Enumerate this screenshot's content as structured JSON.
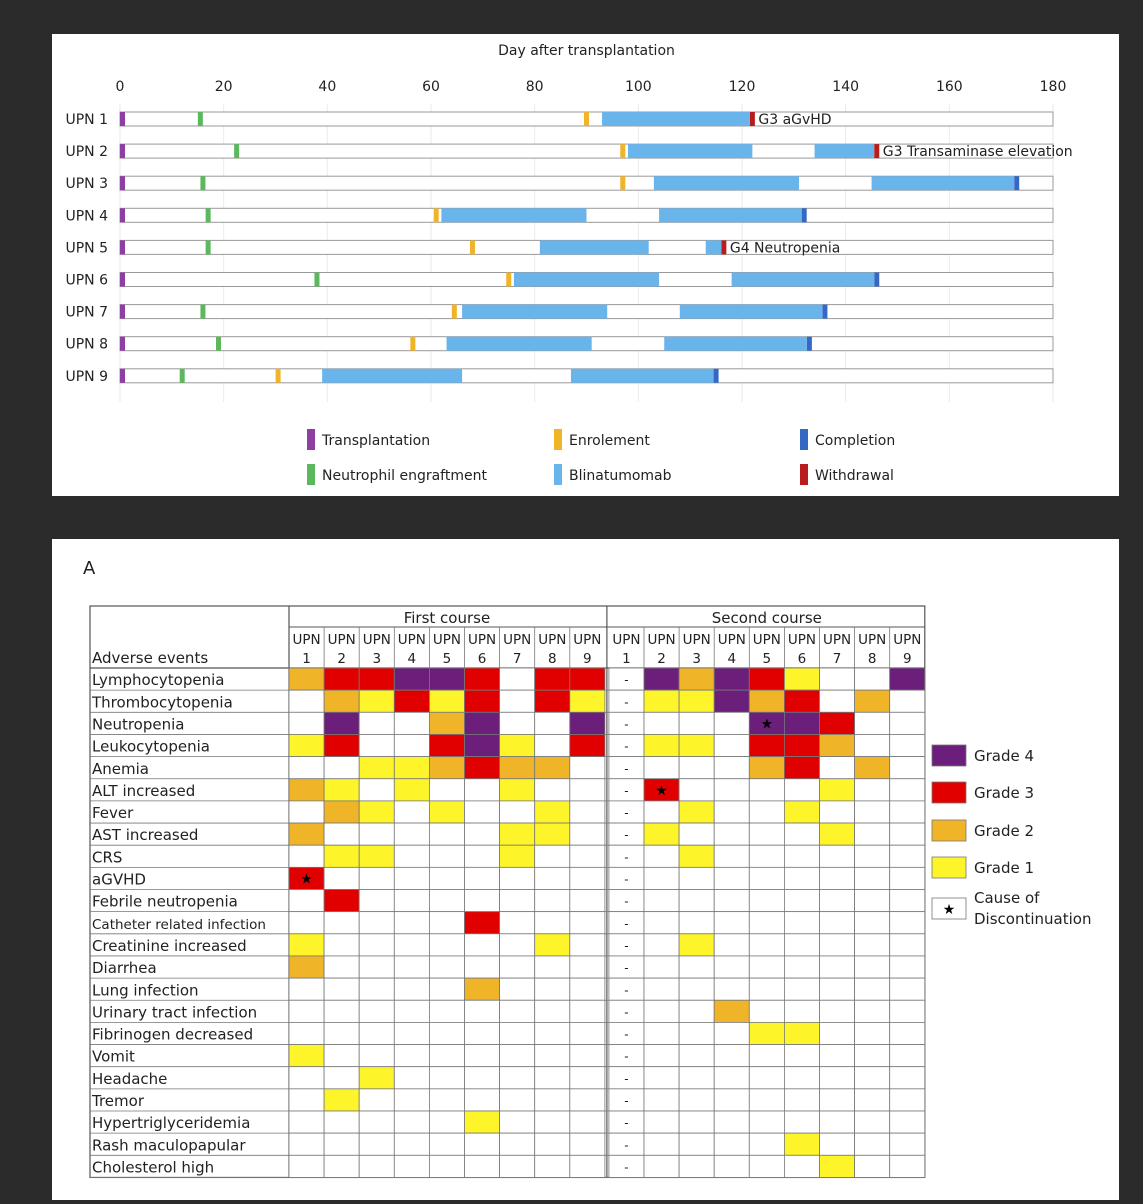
{
  "colors": {
    "transplantation": "#8e3fa3",
    "engraftment": "#5cb85c",
    "enrolement": "#f0b429",
    "blinatumomab": "#6ab4ec",
    "completion": "#3568c5",
    "withdrawal": "#b81c1c",
    "grade4": "#6c1f7a",
    "grade3": "#e00000",
    "grade2": "#f0b429",
    "grade1": "#fdf429"
  },
  "chart_data": [
    {
      "type": "bar",
      "title": "Day after transplantation",
      "xlim": [
        0,
        180
      ],
      "xticks": [
        "0",
        "20",
        "40",
        "60",
        "80",
        "100",
        "120",
        "140",
        "160",
        "180"
      ],
      "legend": [
        {
          "key": "transplantation",
          "label": "Transplantation"
        },
        {
          "key": "enrolement",
          "label": "Enrolement"
        },
        {
          "key": "completion",
          "label": "Completion"
        },
        {
          "key": "engraftment",
          "label": "Neutrophil engraftment"
        },
        {
          "key": "blinatumomab",
          "label": "Blinatumomab"
        },
        {
          "key": "withdrawal",
          "label": "Withdrawal"
        }
      ],
      "rows": [
        {
          "label": "UPN 1",
          "engraftment": 15.5,
          "enrolement": 90,
          "blina": [
            [
              93,
              121.5
            ]
          ],
          "end": {
            "type": "withdrawal",
            "day": 122,
            "note": "G3 aGvHD"
          }
        },
        {
          "label": "UPN 2",
          "engraftment": 22.5,
          "enrolement": 97,
          "blina": [
            [
              98,
              122
            ],
            [
              134,
              145.5
            ]
          ],
          "end": {
            "type": "withdrawal",
            "day": 146,
            "note": "G3 Transaminase elevation"
          }
        },
        {
          "label": "UPN 3",
          "engraftment": 16,
          "enrolement": 97,
          "blina": [
            [
              103,
              131
            ],
            [
              145,
              172.5
            ]
          ],
          "end": {
            "type": "completion",
            "day": 173
          }
        },
        {
          "label": "UPN 4",
          "engraftment": 17,
          "enrolement": 61,
          "blina": [
            [
              62,
              90
            ],
            [
              104,
              131.5
            ]
          ],
          "end": {
            "type": "completion",
            "day": 132
          }
        },
        {
          "label": "UPN 5",
          "engraftment": 17,
          "enrolement": 68,
          "blina": [
            [
              81,
              102
            ],
            [
              113,
              116
            ]
          ],
          "end": {
            "type": "withdrawal",
            "day": 116.5,
            "note": "G4 Neutropenia"
          }
        },
        {
          "label": "UPN 6",
          "engraftment": 38,
          "enrolement": 75,
          "blina": [
            [
              76,
              104
            ],
            [
              118,
              145.5
            ]
          ],
          "end": {
            "type": "completion",
            "day": 146
          }
        },
        {
          "label": "UPN 7",
          "engraftment": 16,
          "enrolement": 64.5,
          "blina": [
            [
              66,
              94
            ],
            [
              108,
              135.5
            ]
          ],
          "end": {
            "type": "completion",
            "day": 136
          }
        },
        {
          "label": "UPN 8",
          "engraftment": 19,
          "enrolement": 56.5,
          "blina": [
            [
              63,
              91
            ],
            [
              105,
              132.5
            ]
          ],
          "end": {
            "type": "completion",
            "day": 133
          }
        },
        {
          "label": "UPN 9",
          "engraftment": 12,
          "enrolement": 30.5,
          "blina": [
            [
              39,
              66
            ],
            [
              87,
              114.5
            ]
          ],
          "end": {
            "type": "completion",
            "day": 115
          }
        }
      ]
    },
    {
      "type": "heatmap",
      "panel_label": "A",
      "corner_label": "Adverse events",
      "courses": [
        "First course",
        "Second course"
      ],
      "upn_header": "UPN",
      "columns": [
        "1",
        "2",
        "3",
        "4",
        "5",
        "6",
        "7",
        "8",
        "9"
      ],
      "second_course_upn1": "-",
      "legend": [
        {
          "grade": 4,
          "label": "Grade 4"
        },
        {
          "grade": 3,
          "label": "Grade 3"
        },
        {
          "grade": 2,
          "label": "Grade 2"
        },
        {
          "grade": 1,
          "label": "Grade 1"
        },
        {
          "grade": "star",
          "label_line1": "Cause of",
          "label_line2": "Discontinuation"
        }
      ],
      "rows": [
        {
          "label": "Lymphocytopenia",
          "first": [
            2,
            3,
            3,
            4,
            4,
            3,
            0,
            3,
            3
          ],
          "second": [
            null,
            4,
            2,
            4,
            3,
            1,
            0,
            0,
            4
          ]
        },
        {
          "label": "Thrombocytopenia",
          "first": [
            0,
            2,
            1,
            3,
            1,
            3,
            0,
            3,
            1
          ],
          "second": [
            null,
            1,
            1,
            4,
            2,
            3,
            0,
            2,
            0
          ]
        },
        {
          "label": "Neutropenia",
          "first": [
            0,
            4,
            0,
            0,
            2,
            4,
            0,
            0,
            4
          ],
          "second": [
            null,
            0,
            0,
            0,
            4,
            4,
            3,
            0,
            0
          ],
          "stars": [
            {
              "course": "second",
              "col": 5
            }
          ]
        },
        {
          "label": "Leukocytopenia",
          "first": [
            1,
            3,
            0,
            0,
            3,
            4,
            1,
            0,
            3
          ],
          "second": [
            null,
            1,
            1,
            0,
            3,
            3,
            2,
            0,
            0
          ]
        },
        {
          "label": "Anemia",
          "first": [
            0,
            0,
            1,
            1,
            2,
            3,
            2,
            2,
            0
          ],
          "second": [
            null,
            0,
            0,
            0,
            2,
            3,
            0,
            2,
            0
          ]
        },
        {
          "label": "ALT increased",
          "first": [
            2,
            1,
            0,
            1,
            0,
            0,
            1,
            0,
            0
          ],
          "second": [
            null,
            3,
            0,
            0,
            0,
            0,
            1,
            0,
            0
          ],
          "stars": [
            {
              "course": "second",
              "col": 2
            }
          ]
        },
        {
          "label": "Fever",
          "first": [
            0,
            2,
            1,
            0,
            1,
            0,
            0,
            1,
            0
          ],
          "second": [
            null,
            0,
            1,
            0,
            0,
            1,
            0,
            0,
            0
          ]
        },
        {
          "label": "AST increased",
          "first": [
            2,
            0,
            0,
            0,
            0,
            0,
            1,
            1,
            0
          ],
          "second": [
            null,
            1,
            0,
            0,
            0,
            0,
            1,
            0,
            0
          ]
        },
        {
          "label": "CRS",
          "first": [
            0,
            1,
            1,
            0,
            0,
            0,
            1,
            0,
            0
          ],
          "second": [
            null,
            0,
            1,
            0,
            0,
            0,
            0,
            0,
            0
          ]
        },
        {
          "label": "aGVHD",
          "first": [
            3,
            0,
            0,
            0,
            0,
            0,
            0,
            0,
            0
          ],
          "second": [
            null,
            0,
            0,
            0,
            0,
            0,
            0,
            0,
            0
          ],
          "stars": [
            {
              "course": "first",
              "col": 1
            }
          ]
        },
        {
          "label": "Febrile neutropenia",
          "first": [
            0,
            3,
            0,
            0,
            0,
            0,
            0,
            0,
            0
          ],
          "second": [
            null,
            0,
            0,
            0,
            0,
            0,
            0,
            0,
            0
          ]
        },
        {
          "label": "Catheter related infection",
          "small": true,
          "first": [
            0,
            0,
            0,
            0,
            0,
            3,
            0,
            0,
            0
          ],
          "second": [
            null,
            0,
            0,
            0,
            0,
            0,
            0,
            0,
            0
          ]
        },
        {
          "label": "Creatinine increased",
          "first": [
            1,
            0,
            0,
            0,
            0,
            0,
            0,
            1,
            0
          ],
          "second": [
            null,
            0,
            1,
            0,
            0,
            0,
            0,
            0,
            0
          ]
        },
        {
          "label": "Diarrhea",
          "first": [
            2,
            0,
            0,
            0,
            0,
            0,
            0,
            0,
            0
          ],
          "second": [
            null,
            0,
            0,
            0,
            0,
            0,
            0,
            0,
            0
          ]
        },
        {
          "label": "Lung infection",
          "first": [
            0,
            0,
            0,
            0,
            0,
            2,
            0,
            0,
            0
          ],
          "second": [
            null,
            0,
            0,
            0,
            0,
            0,
            0,
            0,
            0
          ]
        },
        {
          "label": "Urinary tract infection",
          "first": [
            0,
            0,
            0,
            0,
            0,
            0,
            0,
            0,
            0
          ],
          "second": [
            null,
            0,
            0,
            2,
            0,
            0,
            0,
            0,
            0
          ]
        },
        {
          "label": "Fibrinogen decreased",
          "first": [
            0,
            0,
            0,
            0,
            0,
            0,
            0,
            0,
            0
          ],
          "second": [
            null,
            0,
            0,
            0,
            1,
            1,
            0,
            0,
            0
          ]
        },
        {
          "label": "Vomit",
          "first": [
            1,
            0,
            0,
            0,
            0,
            0,
            0,
            0,
            0
          ],
          "second": [
            null,
            0,
            0,
            0,
            0,
            0,
            0,
            0,
            0
          ]
        },
        {
          "label": "Headache",
          "first": [
            0,
            0,
            1,
            0,
            0,
            0,
            0,
            0,
            0
          ],
          "second": [
            null,
            0,
            0,
            0,
            0,
            0,
            0,
            0,
            0
          ]
        },
        {
          "label": "Tremor",
          "first": [
            0,
            1,
            0,
            0,
            0,
            0,
            0,
            0,
            0
          ],
          "second": [
            null,
            0,
            0,
            0,
            0,
            0,
            0,
            0,
            0
          ]
        },
        {
          "label": "Hypertriglyceridemia",
          "first": [
            0,
            0,
            0,
            0,
            0,
            1,
            0,
            0,
            0
          ],
          "second": [
            null,
            0,
            0,
            0,
            0,
            0,
            0,
            0,
            0
          ]
        },
        {
          "label": "Rash maculopapular",
          "first": [
            0,
            0,
            0,
            0,
            0,
            0,
            0,
            0,
            0
          ],
          "second": [
            null,
            0,
            0,
            0,
            0,
            1,
            0,
            0,
            0
          ]
        },
        {
          "label": "Cholesterol high",
          "first": [
            0,
            0,
            0,
            0,
            0,
            0,
            0,
            0,
            0
          ],
          "second": [
            null,
            0,
            0,
            0,
            0,
            0,
            1,
            0,
            0
          ]
        }
      ]
    }
  ]
}
